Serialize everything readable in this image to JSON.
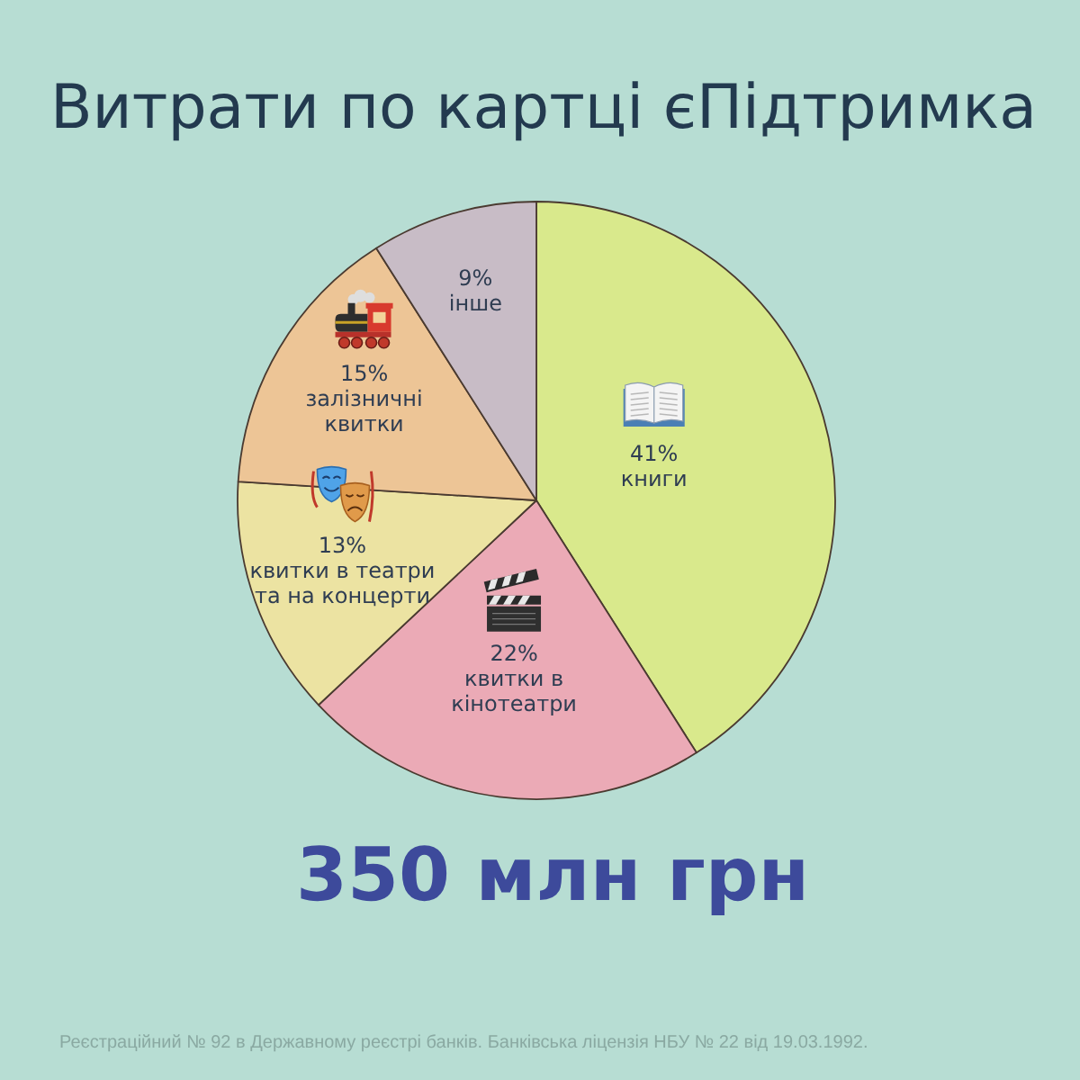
{
  "chart_data": {
    "type": "pie",
    "title": "Витрати по картці єПідтримка",
    "categories": [
      "книги",
      "квитки в кінотеатри",
      "квитки в театри та на концерти",
      "залізничні квитки",
      "інше"
    ],
    "values": [
      41,
      22,
      13,
      15,
      9
    ],
    "colors": [
      "#d9e98c",
      "#ebaab6",
      "#ece3a2",
      "#edc596",
      "#c8bcc6"
    ],
    "value_labels": [
      "41%",
      "22%",
      "13%",
      "15%",
      "9%"
    ],
    "annotations": [
      "350 млн грн",
      "Реєстраційний № 92 в Державному реєстрі банків. Банківська ліцензія НБУ № 22 від 19.03.1992."
    ]
  }
}
